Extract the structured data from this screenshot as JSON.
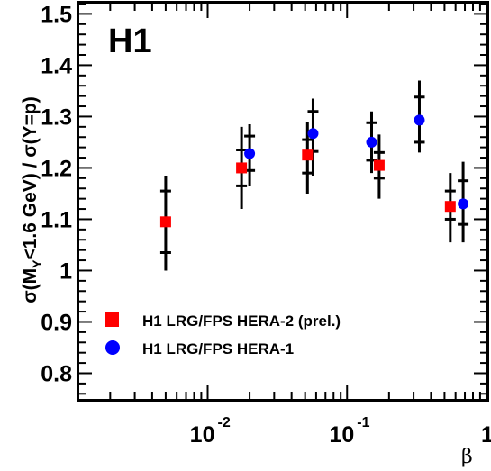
{
  "chart_data": {
    "type": "scatter",
    "experiment_label": "H1",
    "xaxis": {
      "label": "β",
      "scale": "log",
      "range": [
        0.0012,
        1.0
      ],
      "tick_labels": [
        {
          "value": 0.01,
          "base": "10",
          "exp": "-2"
        },
        {
          "value": 0.1,
          "base": "10",
          "exp": "-1"
        },
        {
          "value": 1,
          "base": "1",
          "exp": ""
        }
      ]
    },
    "yaxis": {
      "label_parts": {
        "sigma1": "σ(M",
        "sub": "Y",
        "rest1": "<1.6 GeV) / ",
        "sigma2": "σ(Y=p)"
      },
      "range": [
        0.75,
        1.52
      ],
      "ticks": [
        "0.8",
        "0.9",
        "1",
        "1.1",
        "1.2",
        "1.3",
        "1.4",
        "1.5"
      ]
    },
    "series": [
      {
        "name": "H1 LRG/FPS HERA-2 (prel.)",
        "color": "#ff0000",
        "marker": "square",
        "points": [
          {
            "x": 0.005,
            "y": 1.095,
            "stat": [
              1.035,
              1.155
            ],
            "tot": [
              1.0,
              1.185
            ]
          },
          {
            "x": 0.0175,
            "y": 1.2,
            "stat": [
              1.165,
              1.235
            ],
            "tot": [
              1.12,
              1.28
            ]
          },
          {
            "x": 0.052,
            "y": 1.225,
            "stat": [
              1.19,
              1.255
            ],
            "tot": [
              1.15,
              1.29
            ]
          },
          {
            "x": 0.17,
            "y": 1.205,
            "stat": [
              1.18,
              1.23
            ],
            "tot": [
              1.14,
              1.265
            ]
          },
          {
            "x": 0.55,
            "y": 1.125,
            "stat": [
              1.1,
              1.155
            ],
            "tot": [
              1.055,
              1.19
            ]
          }
        ]
      },
      {
        "name": "H1 LRG/FPS HERA-1",
        "color": "#0000ff",
        "marker": "circle",
        "points": [
          {
            "x": 0.02,
            "y": 1.228,
            "stat": [
              1.195,
              1.262
            ],
            "tot": [
              1.165,
              1.285
            ]
          },
          {
            "x": 0.057,
            "y": 1.267,
            "stat": [
              1.232,
              1.31
            ],
            "tot": [
              1.185,
              1.335
            ]
          },
          {
            "x": 0.15,
            "y": 1.25,
            "stat": [
              1.215,
              1.288
            ],
            "tot": [
              1.19,
              1.31
            ]
          },
          {
            "x": 0.33,
            "y": 1.293,
            "stat": [
              1.25,
              1.338
            ],
            "tot": [
              1.23,
              1.37
            ]
          },
          {
            "x": 0.68,
            "y": 1.13,
            "stat": [
              1.09,
              1.175
            ],
            "tot": [
              1.055,
              1.212
            ]
          }
        ]
      }
    ],
    "legend_position": "lower-left"
  }
}
